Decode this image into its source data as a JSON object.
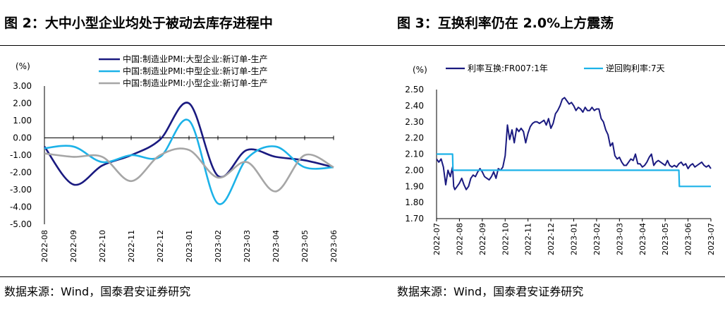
{
  "left": {
    "title": "图 2：大中小型企业均处于被动去库存进程中",
    "source": "数据来源：Wind，国泰君安证券研究"
  },
  "right": {
    "title": "图 3：互换利率仍在 2.0%上方震荡",
    "source": "数据来源：Wind，国泰君安证券研究"
  },
  "colors": {
    "large": "#1a1a80",
    "medium": "#1cb2e8",
    "small": "#a6a6a6",
    "swap": "#1a1a80",
    "repo": "#1cb2e8"
  },
  "chart_data": [
    {
      "type": "line",
      "ylabel": "(%)",
      "ylim": [
        -5,
        3
      ],
      "yticks": [
        "3.00",
        "2.00",
        "1.00",
        "0.00",
        "-1.00",
        "-2.00",
        "-3.00",
        "-4.00",
        "-5.00"
      ],
      "categories": [
        "2022-08",
        "2022-09",
        "2022-10",
        "2022-11",
        "2022-12",
        "2023-01",
        "2023-02",
        "2023-03",
        "2023-04",
        "2023-05",
        "2023-06"
      ],
      "legend_position": "top",
      "series": [
        {
          "name": "中国:制造业PMI:大型企业:新订单-生产",
          "values": [
            -0.5,
            -2.7,
            -1.6,
            -1.0,
            -0.1,
            2.0,
            -2.2,
            -0.7,
            -1.1,
            -1.3,
            -1.7
          ]
        },
        {
          "name": "中国:制造业PMI:中型企业:新订单-生产",
          "values": [
            -0.6,
            -0.5,
            -1.4,
            -1.0,
            -1.1,
            1.0,
            -3.8,
            -1.2,
            -0.5,
            -1.7,
            -1.7
          ]
        },
        {
          "name": "中国:制造业PMI:小型企业:新订单-生产",
          "values": [
            -0.9,
            -1.1,
            -1.1,
            -2.5,
            -1.0,
            -0.7,
            -2.3,
            -1.4,
            -3.1,
            -1.0,
            -1.7
          ]
        }
      ]
    },
    {
      "type": "line",
      "ylabel": "(%)",
      "ylim": [
        1.7,
        2.5
      ],
      "yticks": [
        "2.50",
        "2.40",
        "2.30",
        "2.20",
        "2.10",
        "2.00",
        "1.90",
        "1.80",
        "1.70"
      ],
      "categories": [
        "2022-07",
        "2022-08",
        "2022-09",
        "2022-10",
        "2022-11",
        "2022-12",
        "2023-01",
        "2023-02",
        "2023-03",
        "2023-04",
        "2023-05",
        "2023-06",
        "2023-07"
      ],
      "legend_position": "top",
      "series": [
        {
          "name": "利率互换:FR007:1年",
          "x": [
            0,
            0.1,
            0.2,
            0.3,
            0.4,
            0.5,
            0.6,
            0.7,
            0.75,
            0.8,
            0.9,
            1.0,
            1.1,
            1.2,
            1.3,
            1.4,
            1.5,
            1.6,
            1.7,
            1.8,
            1.9,
            2.0,
            2.1,
            2.2,
            2.3,
            2.4,
            2.5,
            2.6,
            2.7,
            2.8,
            2.9,
            3.0,
            3.1,
            3.2,
            3.3,
            3.4,
            3.5,
            3.6,
            3.7,
            3.8,
            3.9,
            4.0,
            4.1,
            4.2,
            4.3,
            4.4,
            4.5,
            4.6,
            4.7,
            4.8,
            4.9,
            5.0,
            5.1,
            5.2,
            5.3,
            5.4,
            5.5,
            5.6,
            5.7,
            5.8,
            5.9,
            6.0,
            6.1,
            6.2,
            6.3,
            6.4,
            6.5,
            6.6,
            6.7,
            6.8,
            6.9,
            7.0,
            7.1,
            7.2,
            7.3,
            7.4,
            7.5,
            7.6,
            7.7,
            7.8,
            7.9,
            8.0,
            8.1,
            8.2,
            8.3,
            8.4,
            8.5,
            8.6,
            8.7,
            8.8,
            8.9,
            9.0,
            9.1,
            9.2,
            9.3,
            9.4,
            9.5,
            9.6,
            9.7,
            9.8,
            9.9,
            10.0,
            10.1,
            10.2,
            10.3,
            10.4,
            10.5,
            10.6,
            10.7,
            10.8,
            10.9,
            11.0,
            11.1,
            11.2,
            11.3,
            11.4,
            11.5,
            11.6,
            11.7,
            11.8,
            11.9,
            12.0
          ],
          "values": [
            2.07,
            2.05,
            2.07,
            2.02,
            1.91,
            2.0,
            1.96,
            2.02,
            1.9,
            1.88,
            1.9,
            1.92,
            1.95,
            1.91,
            1.88,
            1.9,
            1.95,
            1.97,
            1.96,
            1.99,
            2.01,
            1.99,
            1.96,
            1.95,
            1.94,
            1.96,
            1.99,
            1.95,
            2.01,
            2.0,
            2.02,
            2.09,
            2.28,
            2.19,
            2.25,
            2.17,
            2.26,
            2.24,
            2.26,
            2.24,
            2.17,
            2.23,
            2.27,
            2.29,
            2.3,
            2.3,
            2.29,
            2.3,
            2.31,
            2.28,
            2.32,
            2.26,
            2.29,
            2.35,
            2.37,
            2.4,
            2.44,
            2.45,
            2.43,
            2.41,
            2.42,
            2.4,
            2.37,
            2.39,
            2.38,
            2.36,
            2.39,
            2.37,
            2.37,
            2.39,
            2.37,
            2.38,
            2.38,
            2.32,
            2.3,
            2.25,
            2.22,
            2.15,
            2.17,
            2.09,
            2.07,
            2.08,
            2.05,
            2.03,
            2.03,
            2.05,
            2.07,
            2.06,
            2.1,
            2.04,
            2.04,
            2.02,
            2.03,
            2.05,
            2.08,
            2.1,
            2.03,
            2.05,
            2.06,
            2.05,
            2.04,
            2.03,
            2.06,
            2.03,
            2.02,
            2.03,
            2.02,
            2.04,
            2.05,
            2.03,
            2.04,
            2.01,
            2.03,
            2.04,
            2.02,
            2.03,
            2.04,
            2.05,
            2.03,
            2.02,
            2.03,
            2.01
          ]
        },
        {
          "name": "逆回购利率:7天",
          "x": [
            0,
            0.7,
            0.72,
            10.6,
            10.62,
            12.0
          ],
          "values": [
            2.1,
            2.1,
            2.0,
            2.0,
            1.9,
            1.9
          ],
          "step": true
        }
      ]
    }
  ]
}
